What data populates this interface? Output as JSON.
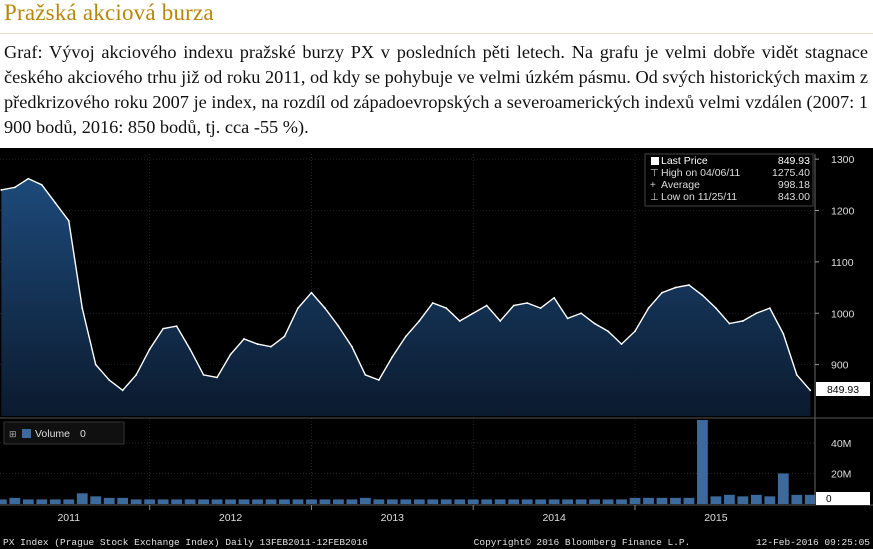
{
  "heading": "Pražská akciová burza",
  "caption": "Graf: Vývoj akciového indexu pražské burzy PX v posledních pěti letech. Na grafu je velmi dobře vidět stagnace českého akciového trhu již od roku 2011, od kdy se pohybuje ve velmi úzkém pásmu. Od svých historických maxim z předkrizového roku 2007 je index, na rozdíl od západoevropských a severoamerických indexů velmi vzdálen (2007: 1 900 bodů, 2016: 850 bodů, tj. cca -55 %).",
  "colors": {
    "area_top": "#1d4a7a",
    "area_bottom": "#0b1a2e",
    "line": "#ffffff",
    "volume_fill": "#3d6a9c",
    "background": "#000000",
    "grid": "#3a3a3a",
    "heading": "#b8860b"
  },
  "legend": {
    "rows": [
      {
        "icon": "square-icon",
        "label": "Last Price",
        "value": "849.93"
      },
      {
        "icon": "high-marker-icon",
        "label": "High on 04/06/11",
        "value": "1275.40"
      },
      {
        "icon": "average-icon",
        "label": "Average",
        "value": "998.18"
      },
      {
        "icon": "low-marker-icon",
        "label": "Low on 11/25/11",
        "value": "843.00"
      }
    ]
  },
  "volume_legend": {
    "label": "Volume",
    "value": "0"
  },
  "footer": {
    "left": "PX Index (Prague Stock Exchange Index)  Daily 13FEB2011-12FEB2016",
    "center": "Copyright© 2016 Bloomberg Finance L.P.",
    "right": "12-Feb-2016 09:25:05"
  },
  "last_price_label": "849.93",
  "volume_last_label": "0",
  "chart_data": [
    {
      "type": "area",
      "title": "",
      "ylim": [
        800,
        1310
      ],
      "y_ticks": [
        "1300",
        "1200",
        "1100",
        "1000",
        "900"
      ],
      "x_ticks": [
        "2011",
        "2012",
        "2013",
        "2014",
        "2015"
      ],
      "series": [
        {
          "name": "Last Price",
          "x": [
            "2011-02",
            "2011-03",
            "2011-04",
            "2011-05",
            "2011-06",
            "2011-07",
            "2011-08",
            "2011-09",
            "2011-10",
            "2011-11",
            "2011-12",
            "2012-01",
            "2012-02",
            "2012-03",
            "2012-04",
            "2012-05",
            "2012-06",
            "2012-07",
            "2012-08",
            "2012-09",
            "2012-10",
            "2012-11",
            "2012-12",
            "2013-01",
            "2013-02",
            "2013-03",
            "2013-04",
            "2013-05",
            "2013-06",
            "2013-07",
            "2013-08",
            "2013-09",
            "2013-10",
            "2013-11",
            "2013-12",
            "2014-01",
            "2014-02",
            "2014-03",
            "2014-04",
            "2014-05",
            "2014-06",
            "2014-07",
            "2014-08",
            "2014-09",
            "2014-10",
            "2014-11",
            "2014-12",
            "2015-01",
            "2015-02",
            "2015-03",
            "2015-04",
            "2015-05",
            "2015-06",
            "2015-07",
            "2015-08",
            "2015-09",
            "2015-10",
            "2015-11",
            "2015-12",
            "2016-01",
            "2016-02"
          ],
          "values": [
            1240,
            1245,
            1262,
            1250,
            1215,
            1180,
            1010,
            900,
            870,
            850,
            880,
            930,
            970,
            975,
            930,
            880,
            875,
            920,
            950,
            940,
            935,
            955,
            1010,
            1040,
            1010,
            975,
            935,
            880,
            870,
            915,
            955,
            985,
            1020,
            1010,
            985,
            1000,
            1015,
            985,
            1015,
            1020,
            1010,
            1030,
            990,
            1000,
            980,
            965,
            940,
            965,
            1010,
            1040,
            1050,
            1055,
            1035,
            1010,
            980,
            985,
            1000,
            1010,
            960,
            880,
            850
          ]
        }
      ]
    },
    {
      "type": "bar",
      "title": "",
      "ylim": [
        0,
        55
      ],
      "y_ticks": [
        "40M",
        "20M",
        "0"
      ],
      "series": [
        {
          "name": "Volume",
          "x": [
            "2011-02",
            "2011-03",
            "2011-04",
            "2011-05",
            "2011-06",
            "2011-07",
            "2011-08",
            "2011-09",
            "2011-10",
            "2011-11",
            "2011-12",
            "2012-01",
            "2012-02",
            "2012-03",
            "2012-04",
            "2012-05",
            "2012-06",
            "2012-07",
            "2012-08",
            "2012-09",
            "2012-10",
            "2012-11",
            "2012-12",
            "2013-01",
            "2013-02",
            "2013-03",
            "2013-04",
            "2013-05",
            "2013-06",
            "2013-07",
            "2013-08",
            "2013-09",
            "2013-10",
            "2013-11",
            "2013-12",
            "2014-01",
            "2014-02",
            "2014-03",
            "2014-04",
            "2014-05",
            "2014-06",
            "2014-07",
            "2014-08",
            "2014-09",
            "2014-10",
            "2014-11",
            "2014-12",
            "2015-01",
            "2015-02",
            "2015-03",
            "2015-04",
            "2015-05",
            "2015-06",
            "2015-07",
            "2015-08",
            "2015-09",
            "2015-10",
            "2015-11",
            "2015-12",
            "2016-01",
            "2016-02"
          ],
          "values": [
            3,
            4,
            3,
            3,
            3,
            3,
            7,
            5,
            4,
            4,
            3,
            3,
            3,
            3,
            3,
            3,
            3,
            3,
            3,
            3,
            3,
            3,
            3,
            3,
            3,
            3,
            3,
            4,
            3,
            3,
            3,
            3,
            3,
            3,
            3,
            3,
            3,
            3,
            3,
            3,
            3,
            3,
            3,
            3,
            3,
            3,
            3,
            4,
            4,
            4,
            4,
            4,
            55,
            5,
            6,
            5,
            6,
            5,
            20,
            6,
            6
          ]
        }
      ]
    }
  ]
}
